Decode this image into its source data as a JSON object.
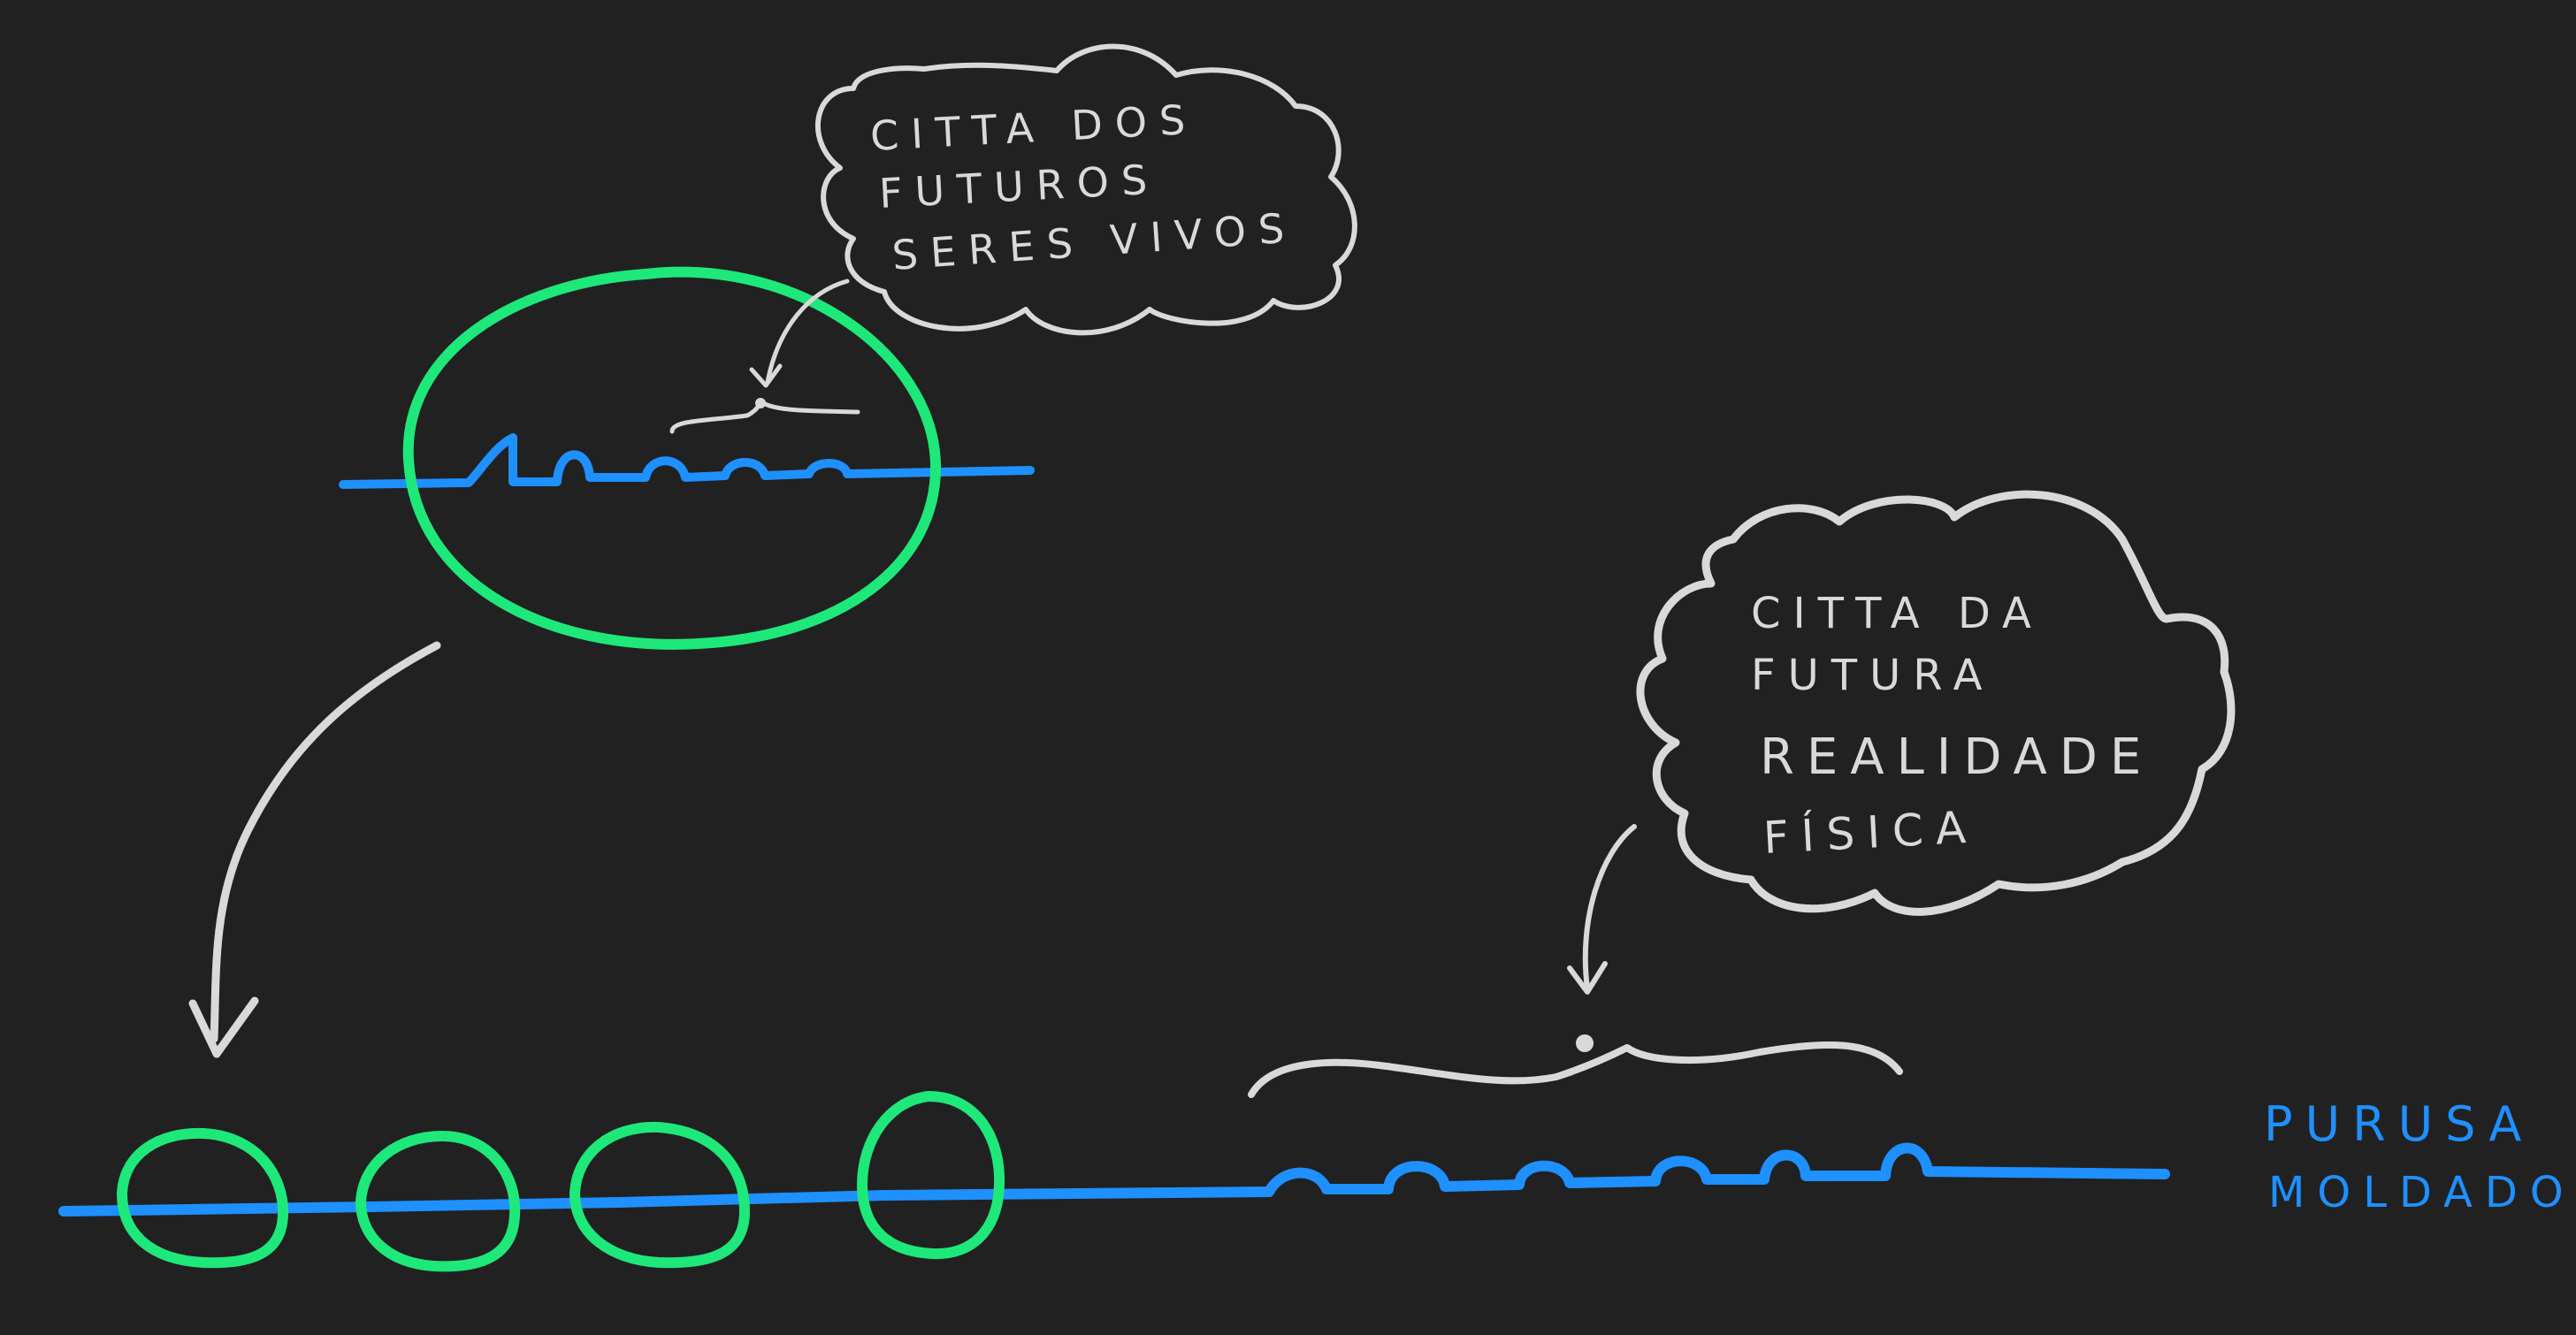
{
  "colors": {
    "background": "#212121",
    "chalk_white": "#d9d9d9",
    "blue": "#1e90ff",
    "green": "#1ee87a"
  },
  "cloud_top": {
    "lines": [
      "CITTA  DOS",
      "FUTUROS",
      "SERES  VIVOS"
    ]
  },
  "cloud_right": {
    "lines": [
      "CITTA  DA",
      "FUTURA",
      "REALIDADE",
      "FÍSICA"
    ]
  },
  "purusa_label": {
    "lines": [
      "PURUSA",
      "MOLDADO"
    ]
  }
}
